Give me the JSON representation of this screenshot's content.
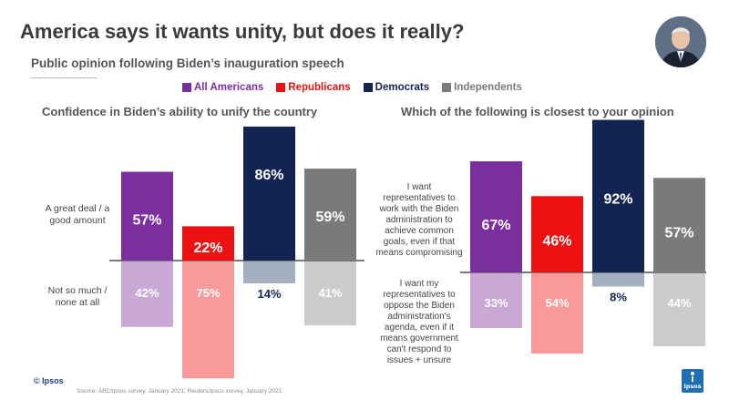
{
  "title": "America says it wants unity, but does it really?",
  "subtitle": "Public opinion following Biden’s inauguration speech",
  "legend": [
    {
      "label": "All Americans",
      "color": "#7b2f9e"
    },
    {
      "label": "Republicans",
      "color": "#ee1111"
    },
    {
      "label": "Democrats",
      "color": "#132454"
    },
    {
      "label": "Independents",
      "color": "#7a7a7a"
    }
  ],
  "left_top_label": "A great deal / a good amount",
  "left_bottom_label": "Not so much / none at all",
  "right_top_label": "I want representatives to work with the Biden administration to achieve common goals, even if that means compromising",
  "right_bottom_label": "I want my representatives to oppose the Biden administration's agenda, even if it means government can't respond to issues + unsure",
  "footer_mark": "© Ipsos",
  "source": "Source: ABC/Ipsos survey, January 2021; Reuters/Ipsos survey, January 2021",
  "brand": "Ipsos",
  "chart_data": [
    {
      "type": "bar",
      "title": "Confidence in Biden’s ability to unify the country",
      "categories": [
        "All Americans",
        "Republicans",
        "Democrats",
        "Independents"
      ],
      "series": [
        {
          "name": "A great deal / a good amount",
          "values": [
            57,
            22,
            86,
            59
          ],
          "labels": [
            "57%",
            "22%",
            "86%",
            "59%"
          ]
        },
        {
          "name": "Not so much / none at all",
          "values": [
            42,
            75,
            14,
            41
          ],
          "labels": [
            "42%",
            "75%",
            "14%",
            "41%"
          ]
        }
      ],
      "colors": [
        "#7b2f9e",
        "#ee1111",
        "#132454",
        "#7a7a7a"
      ],
      "light_colors": [
        "#c9a8d6",
        "#f9999a",
        "#a3aebf",
        "#cbcbcb"
      ],
      "ylim": [
        -80,
        90
      ]
    },
    {
      "type": "bar",
      "title": "Which of the following is closest to your opinion",
      "categories": [
        "All Americans",
        "Republicans",
        "Democrats",
        "Independents"
      ],
      "series": [
        {
          "name": "Work with the Biden administration",
          "values": [
            67,
            46,
            92,
            57
          ],
          "labels": [
            "67%",
            "46%",
            "92%",
            "57%"
          ]
        },
        {
          "name": "Oppose the Biden administration + unsure",
          "values": [
            33,
            54,
            8,
            44
          ],
          "labels": [
            "33%",
            "54%",
            "8%",
            "44%"
          ]
        }
      ],
      "colors": [
        "#7b2f9e",
        "#ee1111",
        "#132454",
        "#7a7a7a"
      ],
      "light_colors": [
        "#c9a8d6",
        "#f9999a",
        "#a3aebf",
        "#cbcbcb"
      ],
      "ylim": [
        -60,
        95
      ]
    }
  ]
}
